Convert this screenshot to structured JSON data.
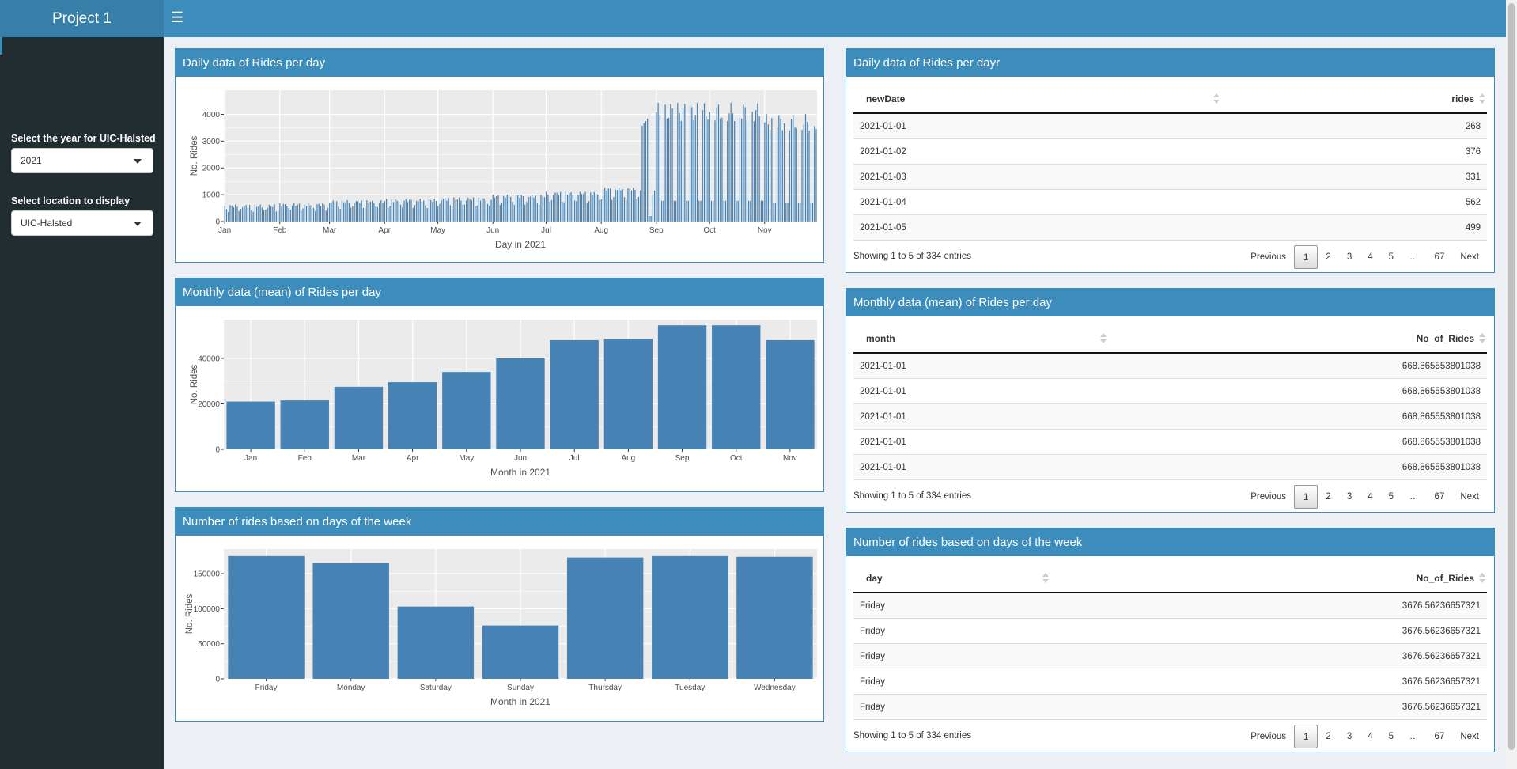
{
  "app": {
    "title": "Project 1"
  },
  "sidebar": {
    "year_label": "Select the year for UIC-Halsted",
    "year_value": "2021",
    "location_label": "Select location to display",
    "location_value": "UIC-Halsted"
  },
  "plots": {
    "daily": {
      "title": "Daily data of Rides per day",
      "xlabel": "Day in 2021",
      "ylabel": "No. Rides",
      "xticks": [
        "Jan",
        "Feb",
        "Mar",
        "Apr",
        "May",
        "Jun",
        "Jul",
        "Aug",
        "Sep",
        "Oct",
        "Nov"
      ],
      "yticks": [
        "0",
        "1000",
        "2000",
        "3000",
        "4000"
      ]
    },
    "monthly": {
      "title": "Monthly data (mean) of Rides per day",
      "xlabel": "Month in 2021",
      "ylabel": "No. Rides",
      "yticks": [
        "0",
        "20000",
        "40000"
      ]
    },
    "weekly": {
      "title": "Number of rides based on days of the week",
      "xlabel": "Month in 2021",
      "ylabel": "No. Rides",
      "yticks": [
        "0",
        "50000",
        "100000",
        "150000"
      ]
    }
  },
  "chart_data": [
    {
      "type": "bar",
      "title": "Daily data of Rides per day",
      "xlabel": "Day in 2021",
      "ylabel": "No. Rides",
      "ylim": [
        0,
        4900
      ],
      "grid": true,
      "x_range": [
        "2021-01-01",
        "2021-11-30"
      ],
      "monthly_levels": [
        {
          "month": "Jan",
          "typical": 550
        },
        {
          "month": "Feb",
          "typical": 600
        },
        {
          "month": "Mar",
          "typical": 700
        },
        {
          "month": "Apr",
          "typical": 750
        },
        {
          "month": "May",
          "typical": 800
        },
        {
          "month": "Jun",
          "typical": 900
        },
        {
          "month": "Jul",
          "typical": 1000
        },
        {
          "month": "Aug",
          "typical": 1150
        },
        {
          "month": "Sep",
          "typical": 4300
        },
        {
          "month": "Oct",
          "typical": 4300
        },
        {
          "month": "Nov",
          "typical": 3900
        }
      ],
      "color": "#4682b4"
    },
    {
      "type": "bar",
      "title": "Monthly data (mean) of Rides per day",
      "categories": [
        "Jan",
        "Feb",
        "Mar",
        "Apr",
        "May",
        "Jun",
        "Jul",
        "Aug",
        "Sep",
        "Oct",
        "Nov"
      ],
      "values": [
        21000,
        21500,
        27500,
        29500,
        34000,
        40000,
        48000,
        48500,
        54500,
        54500,
        48000
      ],
      "xlabel": "Month in 2021",
      "ylabel": "No. Rides",
      "ylim": [
        0,
        57000
      ],
      "grid": true,
      "color": "#4682b4"
    },
    {
      "type": "bar",
      "title": "Number of rides based on days of the week",
      "categories": [
        "Friday",
        "Monday",
        "Saturday",
        "Sunday",
        "Thursday",
        "Tuesday",
        "Wednesday"
      ],
      "values": [
        175000,
        165000,
        103000,
        76000,
        173000,
        175000,
        174000
      ],
      "xlabel": "Month in 2021",
      "ylabel": "No. Rides",
      "ylim": [
        0,
        185000
      ],
      "grid": true,
      "color": "#4682b4"
    }
  ],
  "tables": {
    "daily": {
      "title": "Daily data of Rides per dayr",
      "col1": "newDate",
      "col2": "rides",
      "rows": [
        {
          "c1": "2021-01-01",
          "c2": "268"
        },
        {
          "c1": "2021-01-02",
          "c2": "376"
        },
        {
          "c1": "2021-01-03",
          "c2": "331"
        },
        {
          "c1": "2021-01-04",
          "c2": "562"
        },
        {
          "c1": "2021-01-05",
          "c2": "499"
        }
      ],
      "info": "Showing 1 to 5 of 334 entries"
    },
    "monthly": {
      "title": "Monthly data (mean) of Rides per day",
      "col1": "month",
      "col2": "No_of_Rides",
      "rows": [
        {
          "c1": "2021-01-01",
          "c2": "668.865553801038"
        },
        {
          "c1": "2021-01-01",
          "c2": "668.865553801038"
        },
        {
          "c1": "2021-01-01",
          "c2": "668.865553801038"
        },
        {
          "c1": "2021-01-01",
          "c2": "668.865553801038"
        },
        {
          "c1": "2021-01-01",
          "c2": "668.865553801038"
        }
      ],
      "info": "Showing 1 to 5 of 334 entries"
    },
    "weekly": {
      "title": "Number of rides based on days of the week",
      "col1": "day",
      "col2": "No_of_Rides",
      "rows": [
        {
          "c1": "Friday",
          "c2": "3676.56236657321"
        },
        {
          "c1": "Friday",
          "c2": "3676.56236657321"
        },
        {
          "c1": "Friday",
          "c2": "3676.56236657321"
        },
        {
          "c1": "Friday",
          "c2": "3676.56236657321"
        },
        {
          "c1": "Friday",
          "c2": "3676.56236657321"
        }
      ],
      "info": "Showing 1 to 5 of 334 entries"
    }
  },
  "pagination": {
    "previous": "Previous",
    "pages": [
      "1",
      "2",
      "3",
      "4",
      "5",
      "…",
      "67"
    ],
    "next": "Next"
  }
}
